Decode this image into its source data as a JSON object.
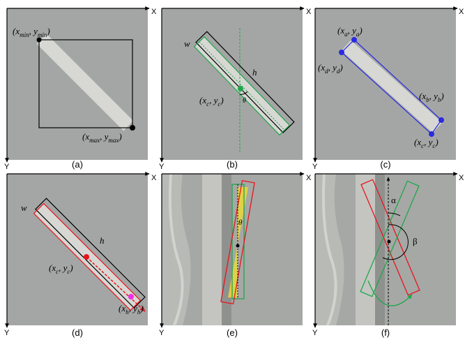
{
  "panels": [
    {
      "caption": "(a)",
      "x_axis": "X",
      "y_axis": "Y",
      "labels": [
        [
          "(x",
          "min",
          ", y",
          "min",
          ")"
        ],
        [
          "(x",
          "max",
          ", y",
          "max",
          ")"
        ]
      ]
    },
    {
      "caption": "(b)",
      "x_axis": "X",
      "y_axis": "Y",
      "labels": [
        [
          "w"
        ],
        [
          "h"
        ],
        [
          "(x",
          "c",
          ", y",
          "c",
          ")"
        ],
        [
          "θ"
        ]
      ]
    },
    {
      "caption": "(c)",
      "x_axis": "X",
      "y_axis": "Y",
      "labels": [
        [
          "(x",
          "a",
          ", y",
          "a",
          ")"
        ],
        [
          "(x",
          "d",
          ", y",
          "d",
          ")"
        ],
        [
          "(x",
          "b",
          ", y",
          "b",
          ")"
        ],
        [
          "(x",
          "c",
          ", y",
          "c",
          ")"
        ]
      ]
    },
    {
      "caption": "(d)",
      "x_axis": "X",
      "y_axis": "Y",
      "labels": [
        [
          "w"
        ],
        [
          "h"
        ],
        [
          "(x",
          "c",
          ", y",
          "c",
          ")"
        ],
        [
          "(x",
          "h",
          ", y",
          "h",
          ")"
        ]
      ]
    },
    {
      "caption": "(e)",
      "x_axis": "X",
      "y_axis": "Y",
      "labels": [
        [
          "θ"
        ]
      ]
    },
    {
      "caption": "(f)",
      "x_axis": "X",
      "y_axis": "Y",
      "labels": [
        [
          "α"
        ],
        [
          "β"
        ]
      ]
    }
  ]
}
